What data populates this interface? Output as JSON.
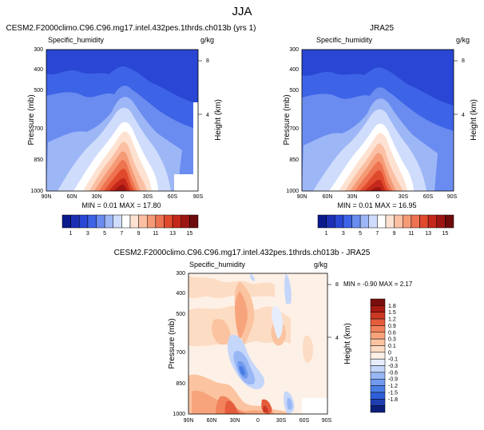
{
  "page": {
    "title": "JJA"
  },
  "colors": {
    "abs_palette": [
      "#0a1a8c",
      "#1c2fb4",
      "#2a46d4",
      "#3d63e6",
      "#6a8cf0",
      "#9db6f6",
      "#cfdcfb",
      "#ffffff",
      "#fde2d2",
      "#fbc0a3",
      "#f59a76",
      "#ee7350",
      "#e04a2c",
      "#c4281a",
      "#9c1512",
      "#6e0a0c"
    ],
    "diff_palette": [
      "#0b1f7a",
      "#1f3fb0",
      "#2f5fd8",
      "#4a7ee6",
      "#7199ee",
      "#99b6f5",
      "#c4d6fa",
      "#e6eefd",
      "#fdf0e6",
      "#fddcc4",
      "#fbc39f",
      "#f7a47c",
      "#f1825c",
      "#e45c3c",
      "#cc3922",
      "#a51b14",
      "#7a0d0d"
    ],
    "text": "#000000"
  },
  "panels": {
    "p1": {
      "title": "CESM2.F2000climo.C96.C96.mg17.intel.432pes.1thrds.ch013b (yrs 1)",
      "left_label": "Specific_humidity",
      "right_label": "g/kg",
      "stats": "MIN =  0.01  MAX = 17.80"
    },
    "p2": {
      "title": "JRA25",
      "left_label": "Specific_humidity",
      "right_label": "g/kg",
      "stats": "MIN =  0.01  MAX = 16.95"
    },
    "p3": {
      "title": "CESM2.F2000climo.C96.C96.mg17.intel.432pes.1thrds.ch013b - JRA25",
      "left_label": "Specific_humidity",
      "right_label": "g/kg",
      "stats": "MIN = -0.90  MAX =  2.17"
    }
  },
  "axes": {
    "ylabel": "Pressure (mb)",
    "y2label": "Height (km)",
    "pressure_ticks": [
      "300",
      "400",
      "500",
      "700",
      "850",
      "1000"
    ],
    "height_ticks": [
      "8",
      "4"
    ],
    "lat_ticks": [
      "90N",
      "60N",
      "30N",
      "0",
      "30S",
      "60S",
      "90S"
    ]
  },
  "colorbars": {
    "abs_labels": [
      "1",
      "3",
      "5",
      "7",
      "9",
      "11",
      "13",
      "15"
    ],
    "diff_labels": [
      "1.8",
      "1.5",
      "1.2",
      "0.9",
      "0.6",
      "0.3",
      "0.1",
      "0",
      "-0.1",
      "-0.3",
      "-0.6",
      "-0.9",
      "-1.2",
      "-1.5",
      "-1.8"
    ]
  },
  "chart_data": [
    {
      "type": "heatmap",
      "title": "CESM2.F2000climo.C96.C96.mg17.intel.432pes.1thrds.ch013b (yrs 1)",
      "variable": "Specific_humidity",
      "units": "g/kg",
      "xlabel": "",
      "ylabel": "Pressure (mb)",
      "y2label": "Height (km)",
      "x": [
        "90N",
        "60N",
        "30N",
        "0",
        "30S",
        "60S",
        "90S"
      ],
      "y": [
        1000,
        850,
        700,
        500,
        400,
        300
      ],
      "ylim": [
        1000,
        300
      ],
      "levels": [
        1,
        2,
        3,
        4,
        5,
        6,
        7,
        8,
        9,
        10,
        11,
        12,
        13,
        14,
        15
      ],
      "min": 0.01,
      "max": 17.8
    },
    {
      "type": "heatmap",
      "title": "JRA25",
      "variable": "Specific_humidity",
      "units": "g/kg",
      "xlabel": "",
      "ylabel": "Pressure (mb)",
      "y2label": "Height (km)",
      "x": [
        "90N",
        "60N",
        "30N",
        "0",
        "30S",
        "60S",
        "90S"
      ],
      "y": [
        1000,
        850,
        700,
        500,
        400,
        300
      ],
      "ylim": [
        1000,
        300
      ],
      "levels": [
        1,
        2,
        3,
        4,
        5,
        6,
        7,
        8,
        9,
        10,
        11,
        12,
        13,
        14,
        15
      ],
      "min": 0.01,
      "max": 16.95
    },
    {
      "type": "heatmap",
      "title": "CESM2.F2000climo.C96.C96.mg17.intel.432pes.1thrds.ch013b - JRA25",
      "variable": "Specific_humidity",
      "units": "g/kg",
      "xlabel": "",
      "ylabel": "Pressure (mb)",
      "y2label": "Height (km)",
      "x": [
        "90N",
        "60N",
        "30N",
        "0",
        "30S",
        "60S",
        "90S"
      ],
      "y": [
        1000,
        850,
        700,
        500,
        400,
        300
      ],
      "ylim": [
        1000,
        300
      ],
      "levels": [
        -1.8,
        -1.5,
        -1.2,
        -0.9,
        -0.6,
        -0.3,
        -0.1,
        0,
        0.1,
        0.3,
        0.6,
        0.9,
        1.2,
        1.5,
        1.8
      ],
      "min": -0.9,
      "max": 2.17
    }
  ]
}
